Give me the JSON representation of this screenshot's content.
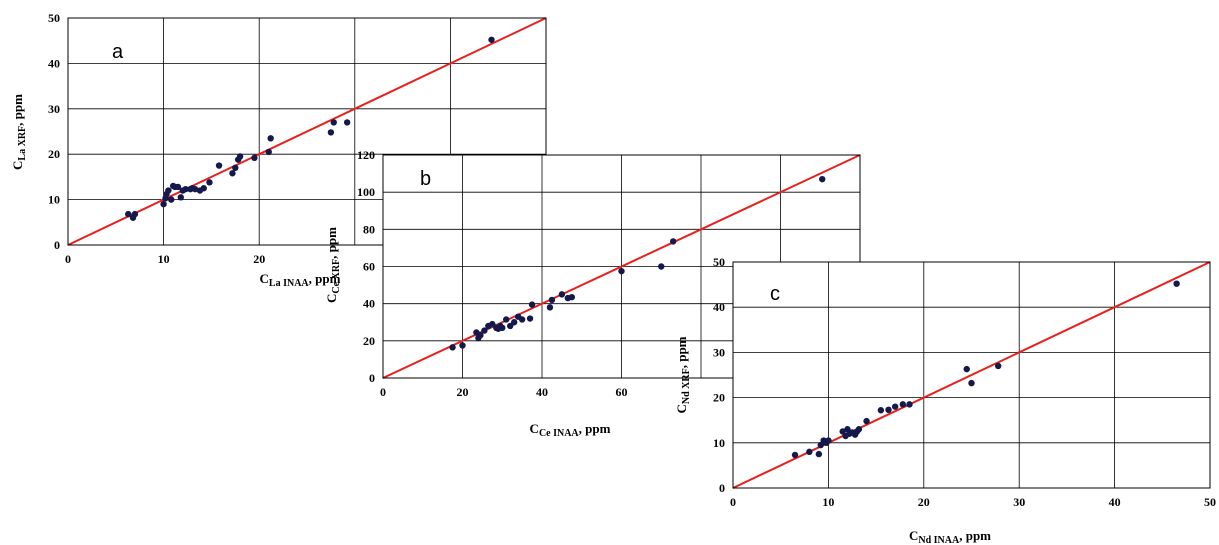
{
  "chart_data": [
    {
      "type": "scatter",
      "panel_label": "a",
      "xlabel": {
        "main": "C",
        "sub": "La INAA",
        "tail": ", ppm"
      },
      "ylabel": {
        "main": "C",
        "sub": "La XRF",
        "tail": ", ppm"
      },
      "xlim": [
        0,
        50
      ],
      "ylim": [
        0,
        50
      ],
      "xticks": [
        0,
        10,
        20
      ],
      "yticks": [
        0,
        10,
        20,
        30,
        40,
        50
      ],
      "grid": true,
      "marker_color": "#14184a",
      "line_color": "#e8201c",
      "reference_line": {
        "x": [
          0,
          50
        ],
        "y": [
          0,
          50
        ]
      },
      "x": [
        6.3,
        6.8,
        7.0,
        10.0,
        10.2,
        10.3,
        10.5,
        10.8,
        11.0,
        11.2,
        11.5,
        11.8,
        12.0,
        12.3,
        12.8,
        13.0,
        13.3,
        13.8,
        14.2,
        14.8,
        15.8,
        17.2,
        17.5,
        17.8,
        18.0,
        19.5,
        21.0,
        21.2,
        27.5,
        27.8,
        29.2,
        44.3
      ],
      "y": [
        6.8,
        6.0,
        6.8,
        9.0,
        10.3,
        11.2,
        12.0,
        10.0,
        13.0,
        12.8,
        12.8,
        10.5,
        12.0,
        12.3,
        12.3,
        12.5,
        12.3,
        12.0,
        12.5,
        13.8,
        17.5,
        15.8,
        17.0,
        18.8,
        19.5,
        19.2,
        20.5,
        23.5,
        24.8,
        27.0,
        27.0,
        45.2
      ]
    },
    {
      "type": "scatter",
      "panel_label": "b",
      "xlabel": {
        "main": "C",
        "sub": "Ce INAA",
        "tail": ", ppm"
      },
      "ylabel": {
        "main": "C",
        "sub": "Ce XRF",
        "tail": ", ppm"
      },
      "xlim": [
        0,
        120
      ],
      "ylim": [
        0,
        120
      ],
      "xticks": [
        0,
        20,
        40,
        60
      ],
      "yticks": [
        0,
        20,
        40,
        60,
        80,
        100,
        120
      ],
      "grid": true,
      "marker_color": "#14184a",
      "line_color": "#e8201c",
      "reference_line": {
        "x": [
          0,
          120
        ],
        "y": [
          0,
          120
        ]
      },
      "x": [
        17.5,
        20.0,
        23.5,
        24.0,
        24.5,
        25.5,
        26.5,
        27.5,
        28.5,
        29.0,
        29.5,
        30.0,
        31.0,
        32.0,
        33.0,
        34.0,
        35.0,
        37.0,
        37.5,
        42.0,
        42.5,
        45.0,
        46.5,
        47.5,
        60.0,
        70.0,
        73.0,
        110.5
      ],
      "y": [
        16.5,
        17.5,
        24.5,
        21.5,
        23.0,
        25.5,
        28.0,
        29.0,
        27.0,
        26.5,
        28.0,
        27.0,
        31.5,
        28.0,
        30.0,
        33.0,
        31.5,
        32.0,
        39.5,
        38.0,
        42.0,
        45.0,
        43.0,
        43.5,
        57.5,
        60.0,
        73.5,
        107.0
      ]
    },
    {
      "type": "scatter",
      "panel_label": "c",
      "xlabel": {
        "main": "C",
        "sub": "Nd INAA",
        "tail": ", ppm"
      },
      "ylabel": {
        "main": "C",
        "sub": "Nd XRF",
        "tail": ", ppm"
      },
      "xlim": [
        0,
        50
      ],
      "ylim": [
        0,
        50
      ],
      "xticks": [
        0,
        10,
        20,
        30,
        40,
        50
      ],
      "yticks": [
        0,
        10,
        20,
        30,
        40,
        50
      ],
      "grid": true,
      "marker_color": "#14184a",
      "line_color": "#e8201c",
      "reference_line": {
        "x": [
          0,
          50
        ],
        "y": [
          0,
          50
        ]
      },
      "x": [
        6.5,
        8.0,
        9.0,
        9.2,
        9.5,
        9.8,
        10.0,
        11.5,
        11.8,
        12.0,
        12.2,
        12.5,
        12.8,
        13.0,
        13.2,
        14.0,
        15.5,
        16.3,
        17.0,
        17.8,
        18.5,
        24.5,
        25.0,
        27.8,
        46.5
      ],
      "y": [
        7.3,
        8.0,
        7.5,
        9.5,
        10.5,
        10.0,
        10.5,
        12.5,
        11.5,
        13.0,
        12.0,
        12.3,
        11.8,
        12.5,
        13.0,
        14.8,
        17.2,
        17.3,
        18.0,
        18.5,
        18.5,
        26.3,
        23.2,
        27.0,
        45.2
      ]
    }
  ]
}
